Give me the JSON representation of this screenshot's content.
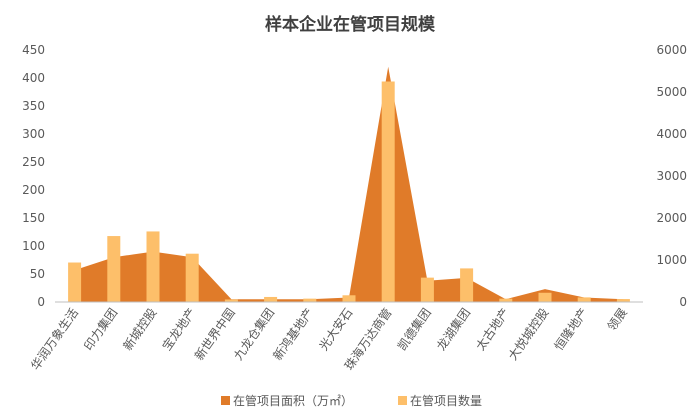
{
  "chart_data": {
    "type": "bar",
    "title": "样本企业在管项目规模",
    "categories": [
      "华润万象生活",
      "印力集团",
      "新城控股",
      "宝龙地产",
      "新世界中国",
      "九龙仓集团",
      "新鸿基地产",
      "光大安石",
      "珠海万达商管",
      "凯德集团",
      "龙湖集团",
      "太古地产",
      "大悦城控股",
      "恒隆地产",
      "领展"
    ],
    "series": [
      {
        "name": "在管项目面积（万㎡）",
        "type": "area",
        "axis": "left",
        "color": "#E07B29",
        "values": [
          57,
          80,
          90,
          80,
          5,
          5,
          5,
          8,
          420,
          38,
          43,
          5,
          23,
          8,
          5
        ]
      },
      {
        "name": "在管项目数量",
        "type": "bar",
        "axis": "right",
        "color": "#FDBF6A",
        "values": [
          940,
          1570,
          1680,
          1150,
          60,
          120,
          80,
          160,
          5250,
          580,
          800,
          80,
          220,
          110,
          70
        ]
      }
    ],
    "y_left": {
      "min": 0,
      "max": 450,
      "ticks": [
        "0",
        "50",
        "100",
        "150",
        "200",
        "250",
        "300",
        "350",
        "400",
        "450"
      ]
    },
    "y_right": {
      "min": 0,
      "max": 6000,
      "ticks": [
        "0",
        "1000",
        "2000",
        "3000",
        "4000",
        "5000",
        "6000"
      ]
    },
    "legend_position": "bottom",
    "grid": false
  }
}
